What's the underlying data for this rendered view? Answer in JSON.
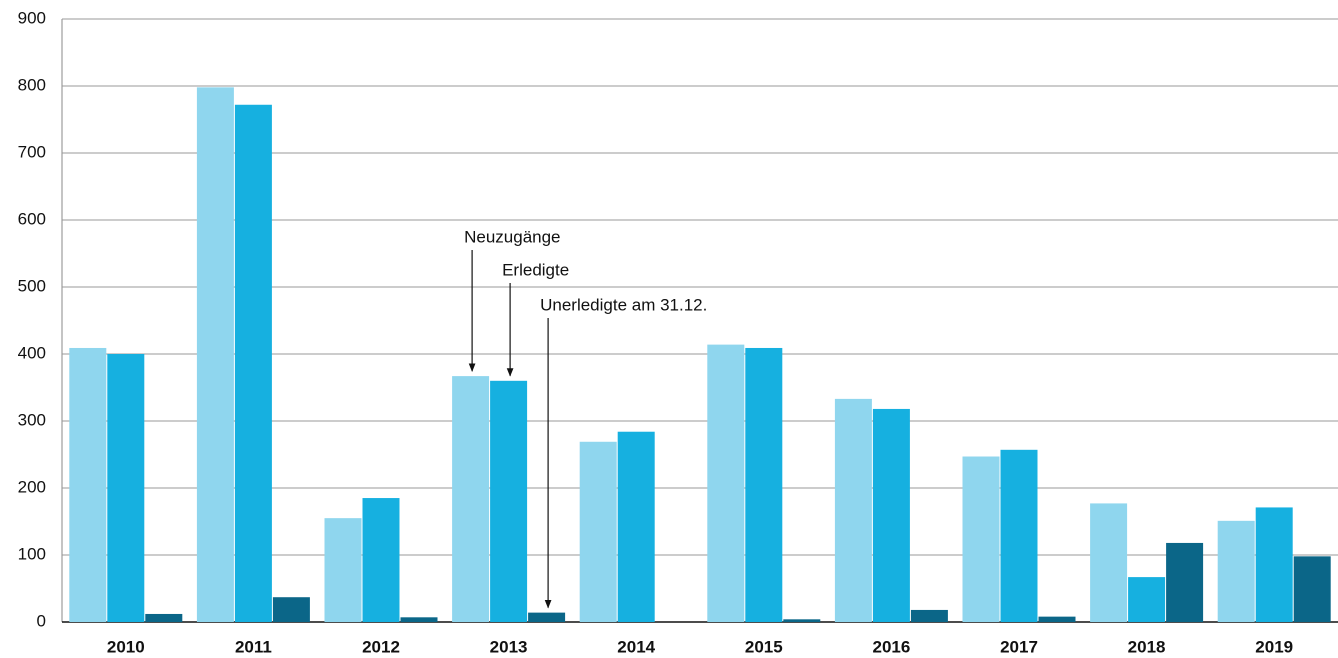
{
  "chart_data": {
    "type": "bar",
    "categories": [
      "2010",
      "2011",
      "2012",
      "2013",
      "2014",
      "2015",
      "2016",
      "2017",
      "2018",
      "2019"
    ],
    "series": [
      {
        "name": "Neuzugänge",
        "color": "#8fd6ee",
        "values": [
          409,
          798,
          155,
          367,
          269,
          414,
          333,
          247,
          177,
          151
        ]
      },
      {
        "name": "Erledigte",
        "color": "#16b0e0",
        "values": [
          400,
          772,
          185,
          360,
          284,
          409,
          318,
          257,
          67,
          171
        ]
      },
      {
        "name": "Unerledigte am 31.12.",
        "color": "#0b6688",
        "values": [
          12,
          37,
          7,
          14,
          0,
          4,
          18,
          8,
          118,
          98
        ]
      }
    ],
    "ylim": [
      0,
      900
    ],
    "yticks": [
      0,
      100,
      200,
      300,
      400,
      500,
      600,
      700,
      800,
      900
    ],
    "grid": true
  }
}
